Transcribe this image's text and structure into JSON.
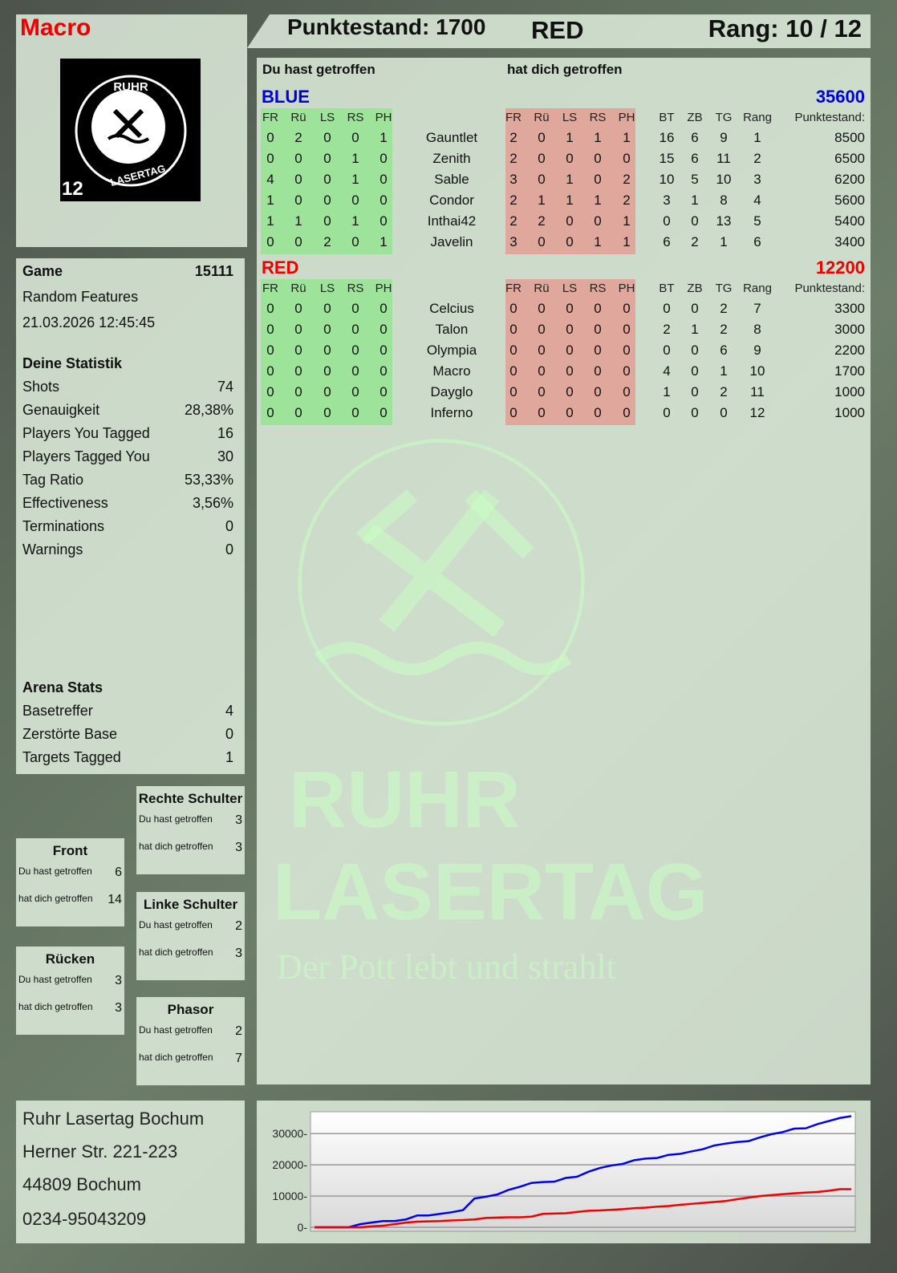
{
  "player": {
    "name": "Macro",
    "team": "RED",
    "score_label": "Punktestand: 1700",
    "rank_label": "Rang: 10 / 12"
  },
  "logo": {
    "top_text": "RUHR",
    "bottom_text": "LASERTAG",
    "badge": "12"
  },
  "watermark": {
    "line1": "RUHR",
    "line2": "LASERTAG",
    "slogan": "Der Pott lebt und strahlt"
  },
  "game": {
    "label": "Game",
    "id": "15111",
    "mode": "Random Features",
    "datetime": "21.03.2026 12:45:45"
  },
  "stats": {
    "title": "Deine Statistik",
    "rows": [
      {
        "label": "Shots",
        "value": "74"
      },
      {
        "label": "Genauigkeit",
        "value": "28,38%"
      },
      {
        "label": "Players You Tagged",
        "value": "16"
      },
      {
        "label": "Players Tagged You",
        "value": "30"
      },
      {
        "label": "Tag Ratio",
        "value": "53,33%"
      },
      {
        "label": "Effectiveness",
        "value": "3,56%"
      },
      {
        "label": "Terminations",
        "value": "0"
      },
      {
        "label": "Warnings",
        "value": "0"
      }
    ]
  },
  "arena": {
    "title": "Arena Stats",
    "rows": [
      {
        "label": "Basetreffer",
        "value": "4"
      },
      {
        "label": "Zerstörte Base",
        "value": "0"
      },
      {
        "label": "Targets Tagged",
        "value": "1"
      }
    ]
  },
  "hits": [
    {
      "title": "Front",
      "you_hit_label": "Du hast getroffen",
      "you_hit": "6",
      "hit_you_label": "hat dich getroffen",
      "hit_you": "14"
    },
    {
      "title": "Rücken",
      "you_hit_label": "Du hast getroffen",
      "you_hit": "3",
      "hit_you_label": "hat dich getroffen",
      "hit_you": "3"
    },
    {
      "title": "Rechte Schulter",
      "you_hit_label": "Du hast getroffen",
      "you_hit": "3",
      "hit_you_label": "hat dich getroffen",
      "hit_you": "3"
    },
    {
      "title": "Linke Schulter",
      "you_hit_label": "Du hast getroffen",
      "you_hit": "2",
      "hit_you_label": "hat dich getroffen",
      "hit_you": "3"
    },
    {
      "title": "Phasor",
      "you_hit_label": "Du hast getroffen",
      "you_hit": "2",
      "hit_you_label": "hat dich getroffen",
      "hit_you": "7"
    }
  ],
  "address": [
    "Ruhr Lasertag Bochum",
    "Herner Str. 221-223",
    "44809 Bochum",
    "0234-95043209"
  ],
  "scoreboard": {
    "you_hit_heading": "Du hast getroffen",
    "hit_you_heading": "hat dich getroffen",
    "hit_columns": [
      "FR",
      "Rü",
      "LS",
      "RS",
      "PH"
    ],
    "stat_columns": [
      "BT",
      "ZB",
      "TG",
      "Rang"
    ],
    "score_column": "Punktestand:",
    "colors": {
      "you_hit_bg": "#9ee39a",
      "hit_you_bg": "#e0a79c",
      "blue": "#0000dd",
      "red": "#ee0000"
    },
    "teams": [
      {
        "name": "BLUE",
        "total": "35600",
        "color": "#0000dd",
        "players": [
          {
            "you_hit": [
              "0",
              "2",
              "0",
              "0",
              "1"
            ],
            "name": "Gauntlet",
            "hit_you": [
              "2",
              "0",
              "1",
              "1",
              "1"
            ],
            "stats": [
              "16",
              "6",
              "9",
              "1"
            ],
            "score": "8500"
          },
          {
            "you_hit": [
              "0",
              "0",
              "0",
              "1",
              "0"
            ],
            "name": "Zenith",
            "hit_you": [
              "2",
              "0",
              "0",
              "0",
              "0"
            ],
            "stats": [
              "15",
              "6",
              "11",
              "2"
            ],
            "score": "6500"
          },
          {
            "you_hit": [
              "4",
              "0",
              "0",
              "1",
              "0"
            ],
            "name": "Sable",
            "hit_you": [
              "3",
              "0",
              "1",
              "0",
              "2"
            ],
            "stats": [
              "10",
              "5",
              "10",
              "3"
            ],
            "score": "6200"
          },
          {
            "you_hit": [
              "1",
              "0",
              "0",
              "0",
              "0"
            ],
            "name": "Condor",
            "hit_you": [
              "2",
              "1",
              "1",
              "1",
              "2"
            ],
            "stats": [
              "3",
              "1",
              "8",
              "4"
            ],
            "score": "5600"
          },
          {
            "you_hit": [
              "1",
              "1",
              "0",
              "1",
              "0"
            ],
            "name": "Inthai42",
            "hit_you": [
              "2",
              "2",
              "0",
              "0",
              "1"
            ],
            "stats": [
              "0",
              "0",
              "13",
              "5"
            ],
            "score": "5400"
          },
          {
            "you_hit": [
              "0",
              "0",
              "2",
              "0",
              "1"
            ],
            "name": "Javelin",
            "hit_you": [
              "3",
              "0",
              "0",
              "1",
              "1"
            ],
            "stats": [
              "6",
              "2",
              "1",
              "6"
            ],
            "score": "3400"
          }
        ]
      },
      {
        "name": "RED",
        "total": "12200",
        "color": "#ee0000",
        "players": [
          {
            "you_hit": [
              "0",
              "0",
              "0",
              "0",
              "0"
            ],
            "name": "Celcius",
            "hit_you": [
              "0",
              "0",
              "0",
              "0",
              "0"
            ],
            "stats": [
              "0",
              "0",
              "2",
              "7"
            ],
            "score": "3300"
          },
          {
            "you_hit": [
              "0",
              "0",
              "0",
              "0",
              "0"
            ],
            "name": "Talon",
            "hit_you": [
              "0",
              "0",
              "0",
              "0",
              "0"
            ],
            "stats": [
              "2",
              "1",
              "2",
              "8"
            ],
            "score": "3000"
          },
          {
            "you_hit": [
              "0",
              "0",
              "0",
              "0",
              "0"
            ],
            "name": "Olympia",
            "hit_you": [
              "0",
              "0",
              "0",
              "0",
              "0"
            ],
            "stats": [
              "0",
              "0",
              "6",
              "9"
            ],
            "score": "2200"
          },
          {
            "you_hit": [
              "0",
              "0",
              "0",
              "0",
              "0"
            ],
            "name": "Macro",
            "hit_you": [
              "0",
              "0",
              "0",
              "0",
              "0"
            ],
            "stats": [
              "4",
              "0",
              "1",
              "10"
            ],
            "score": "1700"
          },
          {
            "you_hit": [
              "0",
              "0",
              "0",
              "0",
              "0"
            ],
            "name": "Dayglo",
            "hit_you": [
              "0",
              "0",
              "0",
              "0",
              "0"
            ],
            "stats": [
              "1",
              "0",
              "2",
              "11"
            ],
            "score": "1000"
          },
          {
            "you_hit": [
              "0",
              "0",
              "0",
              "0",
              "0"
            ],
            "name": "Inferno",
            "hit_you": [
              "0",
              "0",
              "0",
              "0",
              "0"
            ],
            "stats": [
              "0",
              "0",
              "0",
              "12"
            ],
            "score": "1000"
          }
        ]
      }
    ]
  },
  "chart_data": {
    "type": "line",
    "title": "",
    "xlabel": "",
    "ylabel": "",
    "ylim": [
      0,
      37000
    ],
    "yticks": [
      "0",
      "10000",
      "20000",
      "30000"
    ],
    "grid": true,
    "series": [
      {
        "color": "#0000ee",
        "values": [
          0,
          0,
          0,
          0,
          1000,
          1500,
          2000,
          2000,
          2500,
          3800,
          3800,
          4300,
          4800,
          5500,
          9200,
          9800,
          10500,
          12000,
          13000,
          14200,
          14500,
          14600,
          15800,
          16200,
          17800,
          19000,
          19800,
          20300,
          21500,
          22000,
          22200,
          23200,
          23500,
          24300,
          25000,
          26200,
          26800,
          27300,
          27600,
          28800,
          29800,
          30500,
          31600,
          31700,
          33000,
          34000,
          35000,
          35600
        ]
      },
      {
        "color": "#ee0000",
        "values": [
          0,
          0,
          0,
          0,
          0,
          300,
          500,
          1000,
          1500,
          1800,
          1900,
          2000,
          2200,
          2300,
          2500,
          3000,
          3100,
          3200,
          3200,
          3400,
          4300,
          4400,
          4500,
          4900,
          5300,
          5400,
          5600,
          5800,
          6100,
          6300,
          6600,
          6800,
          7200,
          7500,
          7800,
          8100,
          8400,
          9000,
          9500,
          10000,
          10300,
          10600,
          10900,
          11100,
          11300,
          11700,
          12200,
          12200
        ]
      }
    ]
  }
}
